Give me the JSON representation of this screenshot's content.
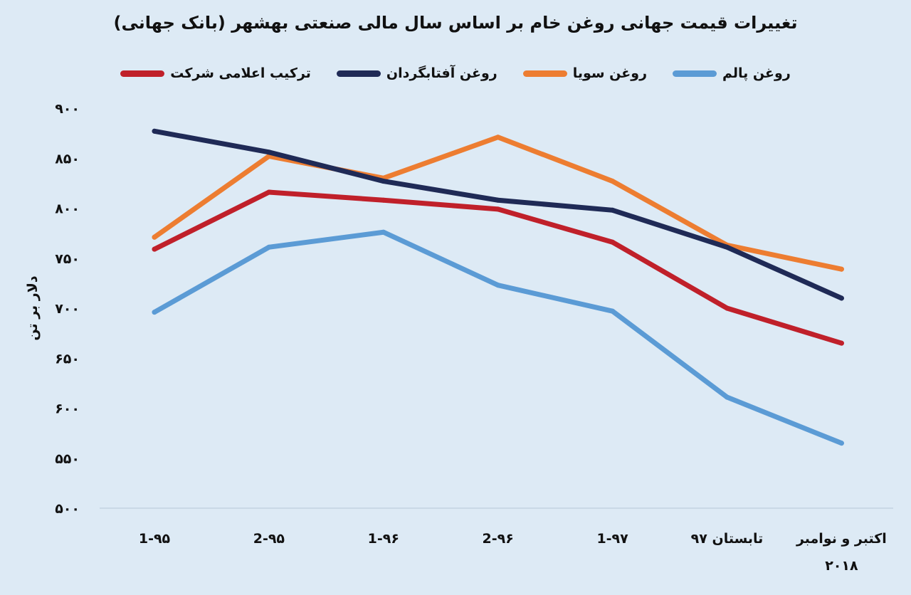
{
  "chart_data": {
    "type": "line",
    "title": "تغییرات قیمت جهانی روغن خام بر اساس سال مالی صنعتی بهشهر (بانک جهانی)",
    "ylabel": "دلار بر تن",
    "xlabel": "",
    "ylim": [
      500,
      900
    ],
    "y_ticks": [
      "۵۰۰",
      "۵۵۰",
      "۶۰۰",
      "۶۵۰",
      "۷۰۰",
      "۷۵۰",
      "۸۰۰",
      "۸۵۰",
      "۹۰۰"
    ],
    "categories": [
      "1-۹۵",
      "2-۹۵",
      "1-۹۶",
      "2-۹۶",
      "1-۹۷",
      "تابستان ۹۷",
      "اکتبر و نوامبر ۲۰۱۸"
    ],
    "legend_position": "top",
    "grid": false,
    "series": [
      {
        "name": "روغن پالم",
        "color": "#5b9bd5",
        "values": [
          696,
          761,
          776,
          723,
          697,
          611,
          565
        ]
      },
      {
        "name": "روغن سویا",
        "color": "#ed7d31",
        "values": [
          771,
          852,
          830,
          871,
          827,
          763,
          739
        ]
      },
      {
        "name": "روغن آفتابگردان",
        "color": "#1f2a56",
        "values": [
          877,
          856,
          827,
          808,
          798,
          761,
          710
        ]
      },
      {
        "name": "ترکیب اعلامی شرکت",
        "color": "#c0202a",
        "values": [
          759,
          816,
          808,
          799,
          766,
          700,
          665
        ]
      }
    ]
  }
}
